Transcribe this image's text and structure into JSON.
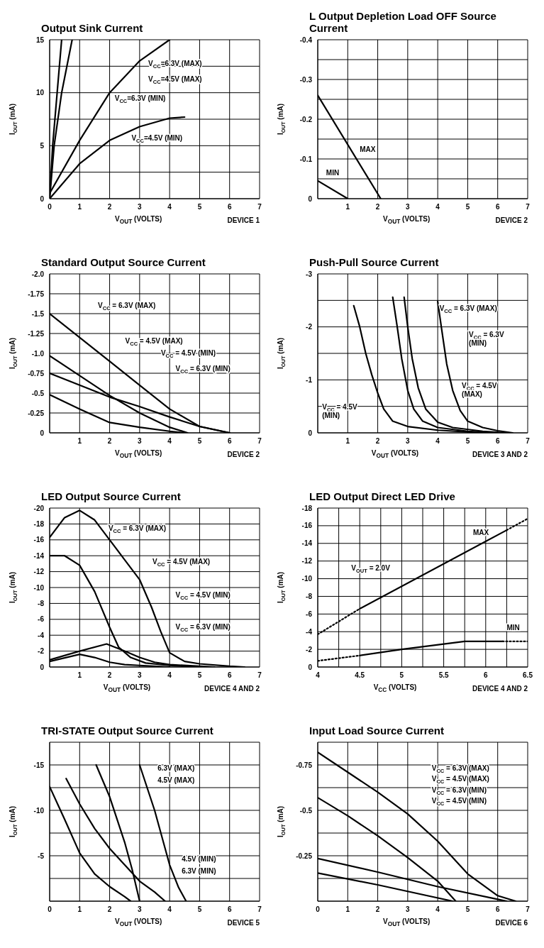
{
  "chart_data": [
    {
      "type": "line",
      "title": "Output Sink Current",
      "xlabel": "V$_{OUT}$ (VOLTS)",
      "ylabel": "I$_{OUT}$ (mA)",
      "xlim": [
        0,
        7
      ],
      "xticks": [
        0,
        1,
        2,
        3,
        4,
        5,
        6,
        7
      ],
      "ylim": [
        0,
        15
      ],
      "yticks": [
        0,
        {
          "value": 2.5,
          "label": null
        },
        5,
        {
          "value": 7.5,
          "label": null
        },
        10,
        {
          "value": 12.5,
          "label": null
        },
        15
      ],
      "grid": true,
      "series": [
        {
          "color": "#000000",
          "x": [
            0,
            0.1,
            0.25,
            0.4
          ],
          "values": [
            0,
            5,
            10,
            15
          ]
        },
        {
          "color": "#000000",
          "x": [
            0,
            0.15,
            0.4,
            0.75
          ],
          "values": [
            0,
            5,
            10,
            15
          ]
        },
        {
          "color": "#000000",
          "x": [
            0,
            1,
            2,
            3,
            4
          ],
          "values": [
            0.5,
            5.5,
            10,
            13,
            15
          ]
        },
        {
          "color": "#000000",
          "x": [
            0,
            1,
            2,
            3,
            4,
            4.5
          ],
          "values": [
            0,
            3.3,
            5.5,
            6.8,
            7.6,
            7.7
          ]
        }
      ],
      "annotations": [
        "V$_{CC}$=6.3V (MAX)",
        "V$_{CC}$=4.5V (MAX)",
        "V$_{CC}$=6.3V (MIN)",
        "V$_{CC}$=4.5V (MIN)",
        "DEVICE 1"
      ]
    },
    {
      "type": "line",
      "title": "L Output Depletion Load OFF Source Current",
      "xlabel": "V$_{OUT}$ (VOLTS)",
      "ylabel": "I$_{OUT}$ (mA)",
      "xlim": [
        0,
        7
      ],
      "xticks": [
        {
          "value": 0,
          "label": null
        },
        1,
        2,
        3,
        4,
        5,
        6,
        7
      ],
      "ylim": [
        0,
        -0.4
      ],
      "yticks": [
        0,
        {
          "value": -0.05,
          "label": null
        },
        -0.1,
        {
          "value": -0.15,
          "label": null
        },
        -0.2,
        {
          "value": -0.25,
          "label": null
        },
        -0.3,
        {
          "value": -0.35,
          "label": null
        },
        -0.4
      ],
      "grid": true,
      "series": [
        {
          "color": "#000000",
          "x": [
            0,
            2.1
          ],
          "values": [
            -0.26,
            0
          ]
        },
        {
          "color": "#000000",
          "x": [
            0,
            1
          ],
          "values": [
            -0.045,
            0
          ]
        }
      ],
      "annotations": [
        "MAX",
        "MIN",
        "DEVICE 2"
      ]
    },
    {
      "type": "line",
      "title": "Standard Output Source Current",
      "xlabel": "V$_{OUT}$ (VOLTS)",
      "ylabel": "I$_{OUT}$ (mA)",
      "xlim": [
        0,
        7
      ],
      "xticks": [
        {
          "value": 0,
          "label": null
        },
        1,
        2,
        3,
        4,
        5,
        6,
        7
      ],
      "ylim": [
        0,
        -2
      ],
      "yticks": [
        0,
        -0.25,
        -0.5,
        -0.75,
        {
          "value": -1,
          "label": "-1.0"
        },
        -1.25,
        -1.5,
        -1.75,
        {
          "value": -2,
          "label": "-2.0"
        }
      ],
      "grid": true,
      "series": [
        {
          "color": "#000000",
          "x": [
            0,
            1,
            2,
            3,
            4,
            5,
            6
          ],
          "values": [
            -1.5,
            -1.2,
            -0.9,
            -0.6,
            -0.3,
            -0.08,
            0
          ]
        },
        {
          "color": "#000000",
          "x": [
            0,
            1,
            2,
            3,
            4,
            4.6
          ],
          "values": [
            -0.97,
            -0.72,
            -0.47,
            -0.25,
            -0.07,
            0
          ]
        },
        {
          "color": "#000000",
          "x": [
            0,
            1,
            2,
            3,
            4,
            5,
            6
          ],
          "values": [
            -0.75,
            -0.6,
            -0.45,
            -0.33,
            -0.2,
            -0.08,
            0
          ]
        },
        {
          "color": "#000000",
          "x": [
            0,
            1,
            2,
            3,
            4,
            4.5
          ],
          "values": [
            -0.48,
            -0.3,
            -0.13,
            -0.07,
            -0.02,
            0
          ]
        }
      ],
      "annotations": [
        "V$_{CC}$ = 6.3V (MAX)",
        "V$_{CC}$ = 4.5V (MAX)",
        "V$_{CC}$ = 4.5V (MIN)",
        "V$_{CC}$ = 6.3V (MIN)",
        "DEVICE 2"
      ]
    },
    {
      "type": "line",
      "title": "Push-Pull Source Current",
      "xlabel": "V$_{OUT}$ (VOLTS)",
      "ylabel": "I$_{OUT}$ (mA)",
      "xlim": [
        0,
        7
      ],
      "xticks": [
        {
          "value": 0,
          "label": null
        },
        1,
        2,
        3,
        4,
        5,
        6,
        7
      ],
      "ylim": [
        0,
        -3
      ],
      "yticks": [
        0,
        {
          "value": -0.5,
          "label": null
        },
        -1,
        {
          "value": -1.5,
          "label": null
        },
        -2,
        {
          "value": -2.5,
          "label": null
        },
        -3
      ],
      "grid": true,
      "series": [
        {
          "color": "#000000",
          "x": [
            1.2,
            1.4,
            1.6,
            1.8,
            2,
            2.2,
            2.5,
            3,
            4,
            5.5
          ],
          "values": [
            -2.4,
            -2,
            -1.5,
            -1.1,
            -0.75,
            -0.45,
            -0.22,
            -0.12,
            -0.05,
            0
          ]
        },
        {
          "color": "#000000",
          "x": [
            2.5,
            2.65,
            2.8,
            3,
            3.2,
            3.5,
            4,
            5,
            6
          ],
          "values": [
            -2.56,
            -2,
            -1.4,
            -0.8,
            -0.45,
            -0.22,
            -0.1,
            -0.03,
            0
          ]
        },
        {
          "color": "#000000",
          "x": [
            2.88,
            3,
            3.15,
            3.35,
            3.6,
            4,
            4.5,
            5.5,
            6.3
          ],
          "values": [
            -2.56,
            -2,
            -1.4,
            -0.85,
            -0.45,
            -0.2,
            -0.1,
            -0.03,
            0
          ]
        },
        {
          "color": "#000000",
          "x": [
            4,
            4.12,
            4.3,
            4.5,
            4.75,
            5,
            5.5,
            6,
            6.5
          ],
          "values": [
            -2.48,
            -2,
            -1.3,
            -0.8,
            -0.42,
            -0.22,
            -0.1,
            -0.04,
            0
          ]
        }
      ],
      "annotations": [
        "V$_{CC}$ = 6.3V (MAX)",
        "V$_{CC}$ = 6.3V\n(MIN)",
        "V$_{CC}$ = 4.5V\n(MAX)",
        "V$_{CC}$ = 4.5V\n(MIN)",
        "DEVICE 3 AND 2"
      ]
    },
    {
      "type": "line",
      "title": "LED Output Source Current",
      "xlabel": "V$_{OUT}$ (VOLTS)",
      "ylabel": "I$_{OUT}$ (mA)",
      "xlim": [
        0,
        7
      ],
      "xticks": [
        {
          "value": 0,
          "label": null
        },
        1,
        2,
        3,
        4,
        5,
        6,
        7
      ],
      "ylim": [
        0,
        -20
      ],
      "yticks": [
        0,
        -2,
        -4,
        -6,
        -8,
        -10,
        -12,
        -14,
        -16,
        -18,
        -20
      ],
      "grid": true,
      "series": [
        {
          "color": "#000000",
          "x": [
            0,
            0.5,
            1,
            1.5,
            2,
            2.5,
            3,
            3.4,
            3.7,
            4,
            4.5,
            5,
            6,
            6.5
          ],
          "values": [
            -16.3,
            -18.8,
            -19.7,
            -18.5,
            -16,
            -13.5,
            -11,
            -7.5,
            -4.5,
            -1.8,
            -0.7,
            -0.4,
            -0.1,
            0
          ]
        },
        {
          "color": "#000000",
          "x": [
            0,
            0.5,
            1,
            1.5,
            2,
            2.3,
            2.7,
            3.2,
            4,
            5
          ],
          "values": [
            -14,
            -14,
            -12.8,
            -9.5,
            -5,
            -2.5,
            -1.2,
            -0.5,
            -0.2,
            0
          ]
        },
        {
          "color": "#000000",
          "x": [
            0,
            1,
            1.5,
            2,
            2.5,
            3,
            4
          ],
          "values": [
            -0.7,
            -1.6,
            -1.2,
            -0.6,
            -0.3,
            -0.2,
            0
          ]
        },
        {
          "color": "#000000",
          "x": [
            0,
            1,
            1.9,
            2.5,
            3,
            3.5,
            4,
            5,
            5.5
          ],
          "values": [
            -0.9,
            -2,
            -2.9,
            -2,
            -1.2,
            -0.6,
            -0.3,
            -0.1,
            0
          ]
        }
      ],
      "annotations": [
        "V$_{CC}$ = 6.3V (MAX)",
        "V$_{CC}$ = 4.5V (MAX)",
        "V$_{CC}$ = 4.5V (MIN)",
        "V$_{CC}$ = 6.3V (MIN)",
        "DEVICE 4 AND 2"
      ]
    },
    {
      "type": "line",
      "title": "LED Output Direct LED Drive",
      "xlabel": "V$_{CC}$ (VOLTS)",
      "ylabel": "I$_{OUT}$ (mA)",
      "xlim": [
        4,
        6.5
      ],
      "xticks": [
        4,
        {
          "value": 4.25,
          "label": null
        },
        4.5,
        {
          "value": 4.75,
          "label": null
        },
        5,
        {
          "value": 5.25,
          "label": null
        },
        5.5,
        {
          "value": 5.75,
          "label": null
        },
        6,
        {
          "value": 6.25,
          "label": null
        },
        6.5
      ],
      "ylim": [
        0,
        -18
      ],
      "yticks": [
        0,
        -2,
        -4,
        -6,
        -8,
        -10,
        -12,
        -14,
        -16,
        -18
      ],
      "grid": true,
      "series": [
        {
          "color": "#000000",
          "x": [
            4.5,
            6.25
          ],
          "values": [
            -6.6,
            -15.5
          ]
        },
        {
          "color": "#000000",
          "x": [
            4,
            4.5
          ],
          "values": [
            -3.7,
            -6.6
          ],
          "line_style": "dotted"
        },
        {
          "color": "#000000",
          "x": [
            6.25,
            6.5
          ],
          "values": [
            -15.5,
            -16.8
          ],
          "line_style": "dotted"
        },
        {
          "color": "#000000",
          "x": [
            4.5,
            5,
            5.75,
            6.2
          ],
          "values": [
            -1.3,
            -2,
            -2.9,
            -2.9
          ]
        },
        {
          "color": "#000000",
          "x": [
            4,
            4.5
          ],
          "values": [
            -0.7,
            -1.3
          ],
          "line_style": "dotted"
        },
        {
          "color": "#000000",
          "x": [
            6.2,
            6.5
          ],
          "values": [
            -2.9,
            -2.9
          ],
          "line_style": "dotted"
        }
      ],
      "annotations": [
        "MAX",
        "MIN",
        "V$_{OUT}$ = 2.0V",
        "DEVICE 4 AND 2"
      ]
    },
    {
      "type": "line",
      "title": "TRI-STATE Output Source Current",
      "xlabel": "V$_{OUT}$ (VOLTS)",
      "ylabel": "I$_{OUT}$ (mA)",
      "xlim": [
        0,
        7
      ],
      "xticks": [
        0,
        1,
        2,
        3,
        4,
        5,
        6,
        7
      ],
      "ylim": [
        0,
        -17.5
      ],
      "yticks": [
        {
          "value": 0,
          "label": null
        },
        {
          "value": -2.5,
          "label": null
        },
        -5,
        {
          "value": -7.5,
          "label": null
        },
        -10,
        {
          "value": -12.5,
          "label": null
        },
        -15,
        {
          "value": -17.5,
          "label": null
        }
      ],
      "grid": true,
      "series": [
        {
          "color": "#000000",
          "x": [
            0,
            0.5,
            1,
            1.5,
            2,
            2.5,
            2.7
          ],
          "values": [
            -12.6,
            -9,
            -5.3,
            -3,
            -1.6,
            -0.5,
            0
          ]
        },
        {
          "color": "#000000",
          "x": [
            0.55,
            1,
            1.5,
            2,
            2.5,
            3,
            3.5,
            3.85
          ],
          "values": [
            -13.5,
            -10.7,
            -8,
            -5.8,
            -4,
            -2.2,
            -1,
            0
          ]
        },
        {
          "color": "#000000",
          "x": [
            1.55,
            2,
            2.5,
            2.75,
            3
          ],
          "values": [
            -15,
            -11.5,
            -6.5,
            -3.5,
            0
          ]
        },
        {
          "color": "#000000",
          "x": [
            3,
            3.5,
            4,
            4.3,
            4.55
          ],
          "values": [
            -15,
            -10,
            -4,
            -1.5,
            0
          ]
        }
      ],
      "annotations": [
        "6.3V (MAX)",
        "4.5V (MAX)",
        "4.5V (MIN)",
        "6.3V (MIN)",
        "DEVICE 5"
      ]
    },
    {
      "type": "line",
      "title": "Input Load Source Current",
      "xlabel": "V$_{OUT}$ (VOLTS)",
      "ylabel": "I$_{OUT}$ (mA)",
      "xlim": [
        0,
        7
      ],
      "xticks": [
        0,
        1,
        2,
        3,
        4,
        5,
        6,
        7
      ],
      "ylim": [
        0,
        -0.875
      ],
      "yticks": [
        {
          "value": 0,
          "label": null
        },
        {
          "value": -0.125,
          "label": null
        },
        -0.25,
        {
          "value": -0.375,
          "label": null
        },
        -0.5,
        {
          "value": -0.625,
          "label": null
        },
        -0.75,
        {
          "value": -0.875,
          "label": null
        }
      ],
      "grid": true,
      "series": [
        {
          "color": "#000000",
          "x": [
            0,
            1,
            2,
            3,
            4,
            5,
            6,
            6.6
          ],
          "values": [
            -0.82,
            -0.71,
            -0.6,
            -0.48,
            -0.33,
            -0.15,
            -0.03,
            0
          ]
        },
        {
          "color": "#000000",
          "x": [
            0,
            1,
            2,
            3,
            4,
            4.6
          ],
          "values": [
            -0.57,
            -0.47,
            -0.36,
            -0.24,
            -0.11,
            0
          ]
        },
        {
          "color": "#000000",
          "x": [
            0,
            2,
            4,
            6,
            6.3
          ],
          "values": [
            -0.235,
            -0.16,
            -0.08,
            -0.01,
            0
          ]
        },
        {
          "color": "#000000",
          "x": [
            0,
            2,
            4.5
          ],
          "values": [
            -0.155,
            -0.09,
            0
          ]
        }
      ],
      "annotations": [
        "V$_{CC}$ = 6.3V (MAX)",
        "V$_{CC}$ = 4.5V (MAX)",
        "V$_{CC}$ = 6.3V (MIN)",
        "V$_{CC}$ = 4.5V (MIN)",
        "DEVICE 6"
      ]
    }
  ]
}
